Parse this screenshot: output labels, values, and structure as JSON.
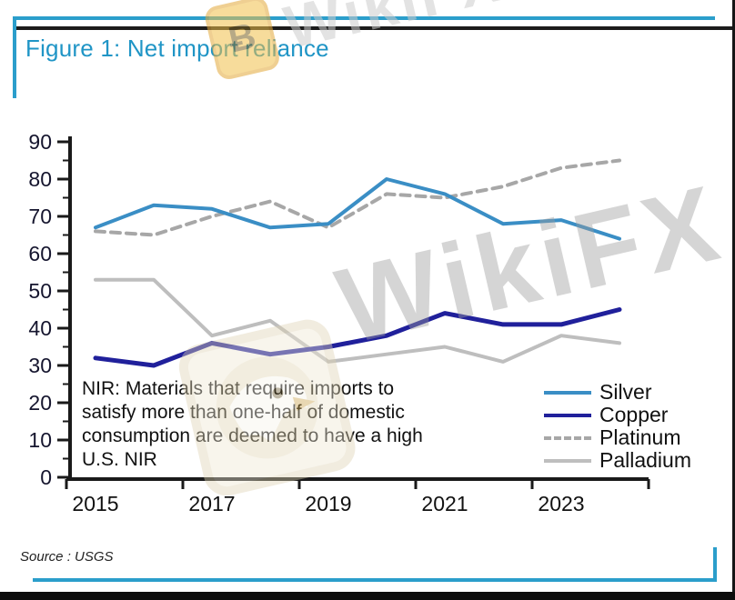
{
  "header": {
    "title": "Figure 1: Net import reliance"
  },
  "watermark": {
    "text": "WikiFX",
    "badge_glyph": "Ƀ"
  },
  "note": {
    "text": "NIR: Materials that require imports to\nsatisfy more than one-half of domestic\nconsumption are deemed to have a high\nU.S. NIR"
  },
  "source": {
    "label": "Source : USGS"
  },
  "chart_data": {
    "type": "line",
    "title": "Figure 1: Net import reliance",
    "x": [
      2015,
      2016,
      2017,
      2018,
      2019,
      2020,
      2021,
      2022,
      2023,
      2024
    ],
    "x_tick_labels": [
      "2015",
      "2017",
      "2019",
      "2021",
      "2023"
    ],
    "y_ticks": [
      0,
      10,
      20,
      30,
      40,
      50,
      60,
      70,
      80,
      90
    ],
    "ylim": [
      0,
      90
    ],
    "grid": false,
    "legend_position": "inside-lower-right",
    "axis_color": "#1a1a1a",
    "tick_label_color": "#15152e",
    "series": [
      {
        "name": "Silver",
        "style": "solid",
        "color": "#3a8ec5",
        "width": 4,
        "values": [
          67,
          73,
          72,
          67,
          68,
          80,
          76,
          68,
          69,
          64
        ]
      },
      {
        "name": "Copper",
        "style": "solid",
        "color": "#20209b",
        "width": 5,
        "values": [
          32,
          30,
          36,
          33,
          35,
          38,
          44,
          41,
          41,
          45
        ]
      },
      {
        "name": "Platinum",
        "style": "dashed",
        "color": "#a7a7a7",
        "width": 4,
        "values": [
          66,
          65,
          70,
          74,
          67,
          76,
          75,
          78,
          83,
          85
        ]
      },
      {
        "name": "Palladium",
        "style": "solid",
        "color": "#bebebe",
        "width": 4,
        "values": [
          53,
          53,
          38,
          42,
          31,
          33,
          35,
          31,
          38,
          36
        ]
      }
    ]
  }
}
